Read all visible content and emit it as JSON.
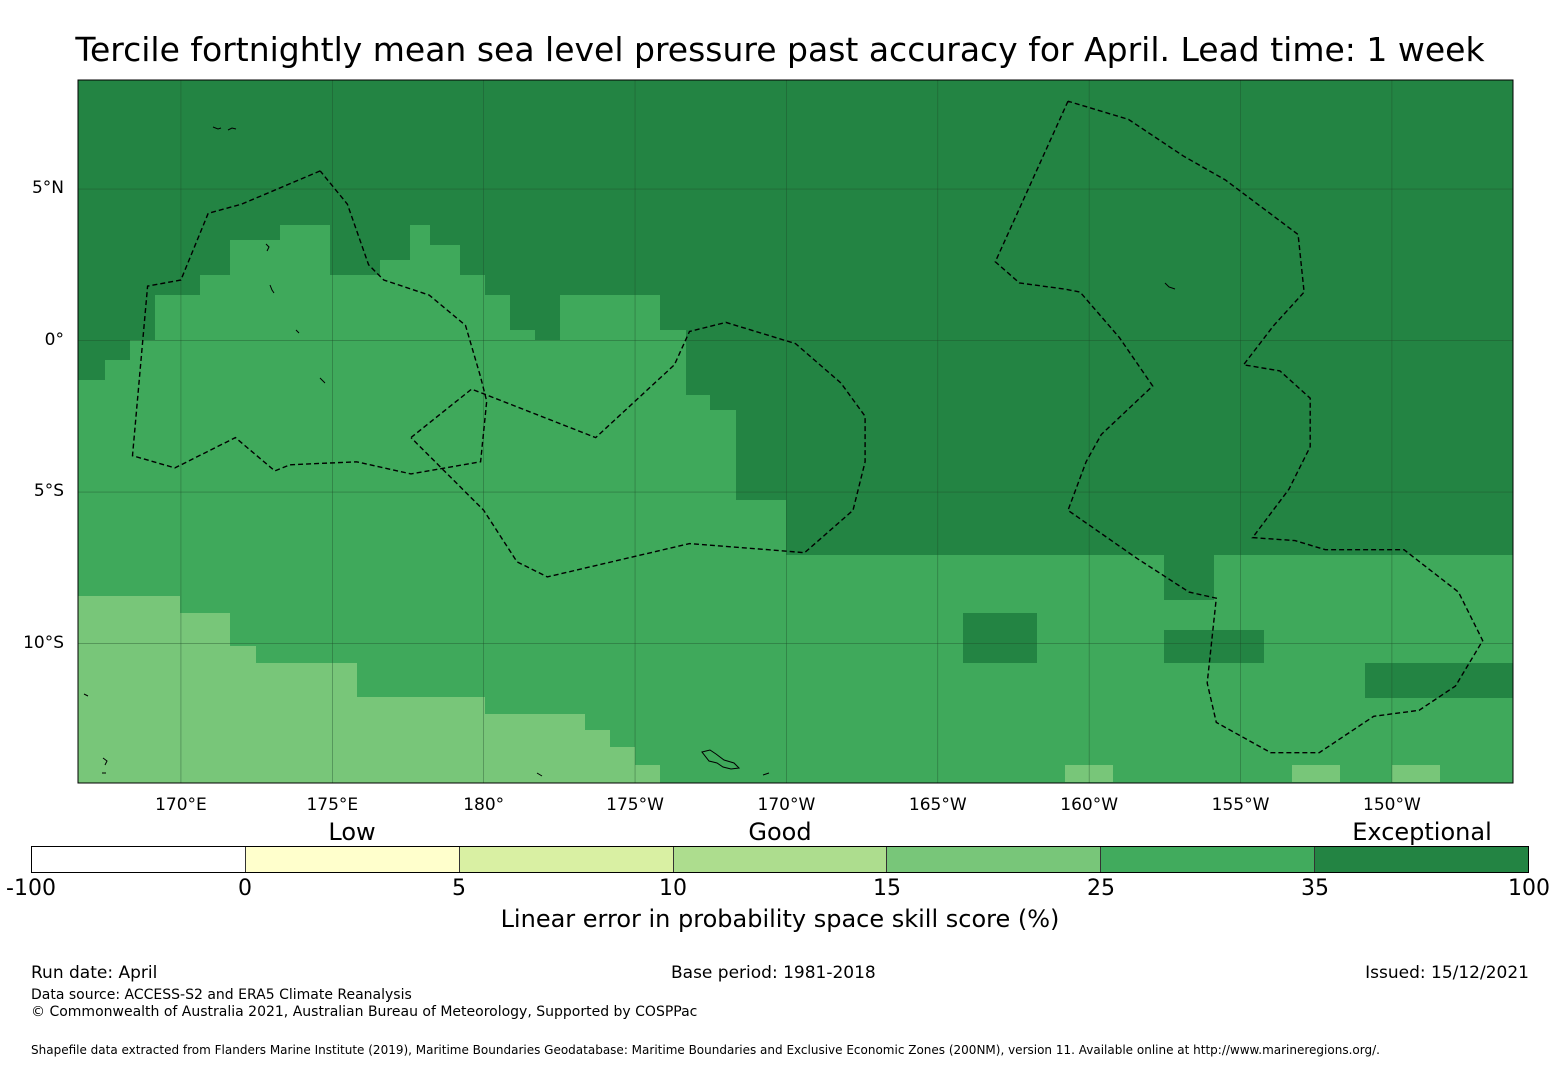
{
  "title": "Tercile fortnightly mean sea level pressure past accuracy for April. Lead time: 1 week",
  "map": {
    "extent": {
      "lon_min": 166.6,
      "lon_max": 214.0,
      "lat_min": -14.6,
      "lat_max": 8.6
    },
    "lon_ticks": [
      {
        "lon": 170,
        "label": "170°E"
      },
      {
        "lon": 175,
        "label": "175°E"
      },
      {
        "lon": 180,
        "label": "180°"
      },
      {
        "lon": 185,
        "label": "175°W"
      },
      {
        "lon": 190,
        "label": "170°W"
      },
      {
        "lon": 195,
        "label": "165°W"
      },
      {
        "lon": 200,
        "label": "160°W"
      },
      {
        "lon": 205,
        "label": "155°W"
      },
      {
        "lon": 210,
        "label": "150°W"
      }
    ],
    "lat_ticks": [
      {
        "lat": 5,
        "label": "5°N"
      },
      {
        "lat": 0,
        "label": "0°"
      },
      {
        "lat": -5,
        "label": "5°S"
      },
      {
        "lat": -10,
        "label": "10°S"
      }
    ],
    "eez_boundaries": [
      [
        [
          174.6,
          5.6
        ],
        [
          172,
          4.5
        ],
        [
          170.9,
          4.2
        ],
        [
          170,
          2
        ],
        [
          168.9,
          1.8
        ],
        [
          168.4,
          -3.8
        ],
        [
          169.8,
          -4.2
        ],
        [
          171.8,
          -3.2
        ],
        [
          173.1,
          -4.3
        ],
        [
          173.6,
          -4.1
        ],
        [
          175.8,
          -4
        ],
        [
          177.6,
          -4.4
        ],
        [
          179.9,
          -4
        ],
        [
          180.1,
          -2
        ],
        [
          179.9,
          -1.2
        ],
        [
          179.4,
          0.5
        ],
        [
          178.2,
          1.5
        ],
        [
          176.7,
          2
        ],
        [
          176.2,
          2.5
        ],
        [
          175.5,
          4.5
        ],
        [
          174.6,
          5.6
        ]
      ],
      [
        [
          177.6,
          -3.2
        ],
        [
          179.6,
          -1.6
        ],
        [
          183.7,
          -3.2
        ],
        [
          186.3,
          -0.8
        ],
        [
          186.8,
          0.3
        ],
        [
          188,
          0.6
        ],
        [
          190.3,
          -0.1
        ],
        [
          191.8,
          -1.4
        ],
        [
          192.6,
          -2.5
        ],
        [
          192.6,
          -4
        ],
        [
          192.2,
          -5.6
        ],
        [
          190.6,
          -7
        ],
        [
          189.4,
          -6.9
        ],
        [
          186.8,
          -6.7
        ],
        [
          182.1,
          -7.8
        ],
        [
          181.1,
          -7.3
        ],
        [
          180,
          -5.6
        ],
        [
          177.6,
          -3.2
        ]
      ],
      [
        [
          199.3,
          7.9
        ],
        [
          196.9,
          2.6
        ],
        [
          197.7,
          1.9
        ],
        [
          199.2,
          1.7
        ],
        [
          199.7,
          1.6
        ],
        [
          201,
          0.1
        ],
        [
          202.1,
          -1.5
        ],
        [
          200.4,
          -3.1
        ],
        [
          199.9,
          -4
        ],
        [
          199.3,
          -5.6
        ],
        [
          201.6,
          -7.2
        ],
        [
          203.3,
          -8.3
        ],
        [
          204.2,
          -8.5
        ],
        [
          203.9,
          -11.3
        ],
        [
          204.2,
          -12.6
        ],
        [
          206,
          -13.6
        ],
        [
          207.6,
          -13.6
        ],
        [
          209.4,
          -12.4
        ],
        [
          210.9,
          -12.2
        ],
        [
          212.1,
          -11.4
        ],
        [
          213,
          -9.9
        ],
        [
          212.2,
          -8.3
        ],
        [
          210.4,
          -6.9
        ],
        [
          207.8,
          -6.9
        ],
        [
          206.8,
          -6.6
        ],
        [
          205.4,
          -6.5
        ],
        [
          206.6,
          -4.9
        ],
        [
          207.3,
          -3.5
        ],
        [
          207.3,
          -1.9
        ],
        [
          206.3,
          -1
        ],
        [
          205.1,
          -0.8
        ],
        [
          206.1,
          0.5
        ],
        [
          207.1,
          1.6
        ],
        [
          206.9,
          3.5
        ],
        [
          204.5,
          5.3
        ],
        [
          203.1,
          6.1
        ],
        [
          201.3,
          7.3
        ],
        [
          199.3,
          7.9
        ]
      ]
    ],
    "colors": {
      "ocean_base": "#3fa95b",
      "band_15_25": "#78c679",
      "band_35_100": "#238443",
      "gridline": "#1e4a2a"
    }
  },
  "colorbar": {
    "band_labels": [
      {
        "text": "Low",
        "value": 2.5
      },
      {
        "text": "Good",
        "value": 12.5
      },
      {
        "text": "Exceptional",
        "value": 67.5
      }
    ],
    "ticks": [
      "-100",
      "0",
      "5",
      "10",
      "15",
      "25",
      "35",
      "100"
    ],
    "colors": [
      "#ffffff",
      "#ffffcc",
      "#d9f0a3",
      "#addd8e",
      "#78c679",
      "#41ab5d",
      "#238443"
    ],
    "label": "Linear error in probability space skill score (%)"
  },
  "footer": {
    "run_date": "Run date: April",
    "base_period": "Base period: 1981-2018",
    "issued": "Issued: 15/12/2021",
    "data_source": "Data source: ACCESS-S2 and ERA5 Climate Reanalysis",
    "copyright": "© Commonwealth of Australia 2021, Australian Bureau of Meteorology, Supported by COSPPac",
    "shapefile": "Shapefile data extracted from Flanders Marine Institute (2019), Maritime Boundaries Geodatabase: Maritime Boundaries and Exclusive Economic Zones (200NM), version 11. Available online at http://www.marineregions.org/."
  }
}
